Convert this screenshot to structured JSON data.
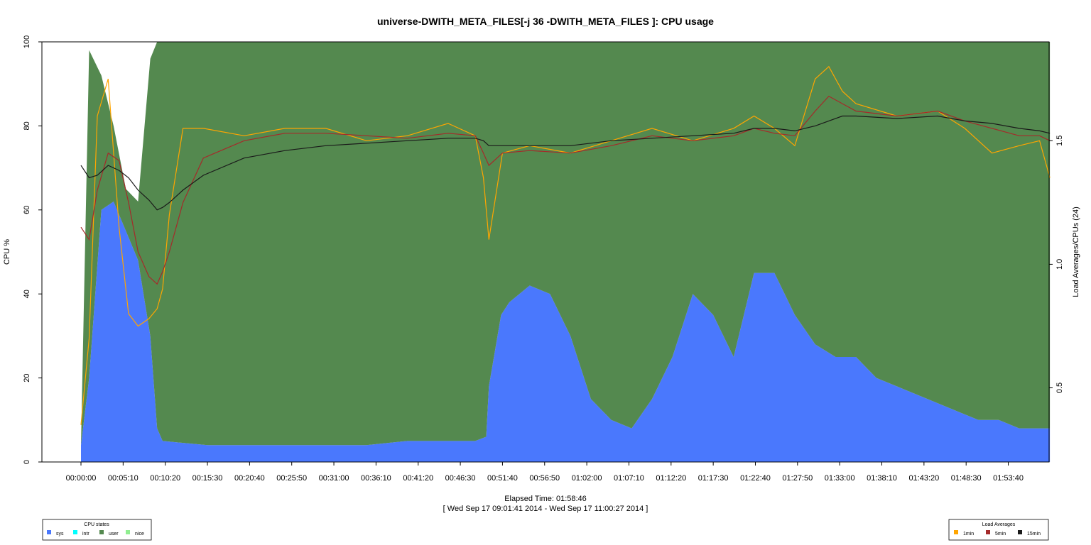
{
  "chart_data": {
    "type": "area",
    "title": "universe-DWITH_META_FILES[-j 36 -DWITH_META_FILES ]: CPU usage",
    "xlabel": "Elapsed Time: 01:58:46",
    "xlabel_sub": "[ Wed Sep 17 09:01:41 2014 - Wed Sep 17 11:00:27 2014 ]",
    "ylabel": "CPU %",
    "ylabel_right": "Load Averages/CPUs (24)",
    "x_unit": "seconds elapsed",
    "xlim": [
      0,
      7126
    ],
    "ylim": [
      0,
      100
    ],
    "ylim_right": [
      0.2,
      1.9
    ],
    "grid": false,
    "x_tick_labels": [
      "00:00:00",
      "00:05:10",
      "00:10:20",
      "00:15:30",
      "00:20:40",
      "00:25:50",
      "00:31:00",
      "00:36:10",
      "00:41:20",
      "00:46:30",
      "00:51:40",
      "00:56:50",
      "01:02:00",
      "01:07:10",
      "01:12:20",
      "01:17:30",
      "01:22:40",
      "01:27:50",
      "01:33:00",
      "01:38:10",
      "01:43:20",
      "01:48:30",
      "01:53:40"
    ],
    "y_tick_labels": [
      "0",
      "20",
      "40",
      "60",
      "80",
      "100"
    ],
    "y_right_tick_labels": [
      "0.5",
      "1.0",
      "1.5"
    ],
    "cpu_states": {
      "legend_title": "CPU states",
      "legend_position": "bottom-left",
      "x": [
        0,
        60,
        150,
        240,
        330,
        420,
        510,
        560,
        600,
        930,
        1200,
        1500,
        1800,
        2100,
        2400,
        2700,
        2900,
        2980,
        3000,
        3090,
        3150,
        3300,
        3450,
        3600,
        3750,
        3900,
        4050,
        4200,
        4350,
        4500,
        4650,
        4800,
        4950,
        5100,
        5250,
        5400,
        5550,
        5700,
        5850,
        6000,
        6150,
        6300,
        6450,
        6600,
        6750,
        6900,
        7000,
        7126
      ],
      "series": [
        {
          "name": "sys",
          "color": "#4a78fd",
          "values": [
            4,
            20,
            60,
            62,
            55,
            48,
            30,
            8,
            5,
            4,
            4,
            4,
            4,
            4,
            5,
            5,
            5,
            6,
            18,
            35,
            38,
            42,
            40,
            30,
            15,
            10,
            8,
            15,
            25,
            40,
            35,
            25,
            45,
            45,
            35,
            28,
            25,
            25,
            20,
            18,
            16,
            14,
            12,
            10,
            10,
            8,
            8,
            8
          ]
        },
        {
          "name": "intr",
          "color": "#00ffff",
          "values": [
            0,
            0,
            0,
            0,
            0,
            0,
            0,
            0,
            0,
            0,
            0,
            0,
            0,
            0,
            0,
            0,
            0,
            0,
            0,
            0,
            0,
            0,
            0,
            0,
            0,
            0,
            0,
            0,
            0,
            0,
            0,
            0,
            0,
            0,
            0,
            0,
            0,
            0,
            0,
            0,
            0,
            0,
            0,
            0,
            0,
            0,
            0,
            0
          ]
        },
        {
          "name": "user",
          "color": "#54894f",
          "values": [
            0,
            78,
            32,
            18,
            10,
            14,
            66,
            92,
            95,
            96,
            96,
            96,
            96,
            96,
            95,
            95,
            95,
            94,
            82,
            65,
            62,
            58,
            60,
            70,
            85,
            90,
            92,
            85,
            75,
            60,
            65,
            75,
            55,
            55,
            65,
            72,
            75,
            75,
            80,
            82,
            84,
            86,
            88,
            90,
            90,
            92,
            92,
            92
          ]
        },
        {
          "name": "nice",
          "color": "#90ee90",
          "values": [
            0,
            0,
            0,
            0,
            0,
            0,
            0,
            0,
            0,
            0,
            0,
            0,
            0,
            0,
            0,
            0,
            0,
            0,
            0,
            0,
            0,
            0,
            0,
            0,
            0,
            0,
            0,
            0,
            0,
            0,
            0,
            0,
            0,
            0,
            0,
            0,
            0,
            0,
            0,
            0,
            0,
            0,
            0,
            0,
            0,
            0,
            0,
            0
          ]
        }
      ]
    },
    "load_averages": {
      "legend_title": "Load Averages",
      "legend_position": "bottom-right",
      "x": [
        0,
        60,
        120,
        200,
        280,
        350,
        420,
        500,
        560,
        600,
        650,
        750,
        900,
        1200,
        1500,
        1800,
        2100,
        2400,
        2700,
        2900,
        2960,
        3000,
        3100,
        3300,
        3600,
        3900,
        4200,
        4500,
        4800,
        4950,
        5100,
        5250,
        5400,
        5500,
        5600,
        5700,
        6000,
        6300,
        6500,
        6700,
        6900,
        7050,
        7126
      ],
      "series": [
        {
          "name": "1min",
          "color": "#ffa500",
          "values": [
            0.35,
            0.7,
            1.6,
            1.75,
            1.15,
            0.8,
            0.75,
            0.78,
            0.82,
            0.9,
            1.2,
            1.55,
            1.55,
            1.52,
            1.55,
            1.55,
            1.5,
            1.52,
            1.57,
            1.52,
            1.35,
            1.1,
            1.45,
            1.48,
            1.45,
            1.5,
            1.55,
            1.5,
            1.55,
            1.6,
            1.55,
            1.48,
            1.75,
            1.8,
            1.7,
            1.65,
            1.6,
            1.62,
            1.55,
            1.45,
            1.48,
            1.5,
            1.35
          ]
        },
        {
          "name": "5min",
          "color": "#a52a2a",
          "values": [
            1.15,
            1.1,
            1.3,
            1.45,
            1.42,
            1.25,
            1.05,
            0.95,
            0.92,
            0.97,
            1.05,
            1.25,
            1.43,
            1.5,
            1.53,
            1.53,
            1.52,
            1.51,
            1.53,
            1.52,
            1.45,
            1.4,
            1.45,
            1.46,
            1.45,
            1.48,
            1.52,
            1.5,
            1.52,
            1.55,
            1.53,
            1.52,
            1.62,
            1.68,
            1.65,
            1.62,
            1.6,
            1.62,
            1.58,
            1.55,
            1.52,
            1.52,
            1.5
          ]
        },
        {
          "name": "15min",
          "color": "#1a1a1a",
          "values": [
            1.4,
            1.35,
            1.36,
            1.4,
            1.38,
            1.35,
            1.3,
            1.26,
            1.22,
            1.23,
            1.25,
            1.3,
            1.36,
            1.43,
            1.46,
            1.48,
            1.49,
            1.5,
            1.51,
            1.51,
            1.5,
            1.48,
            1.48,
            1.48,
            1.48,
            1.5,
            1.51,
            1.52,
            1.53,
            1.55,
            1.55,
            1.54,
            1.56,
            1.58,
            1.6,
            1.6,
            1.59,
            1.6,
            1.58,
            1.57,
            1.55,
            1.54,
            1.53
          ]
        }
      ]
    }
  }
}
